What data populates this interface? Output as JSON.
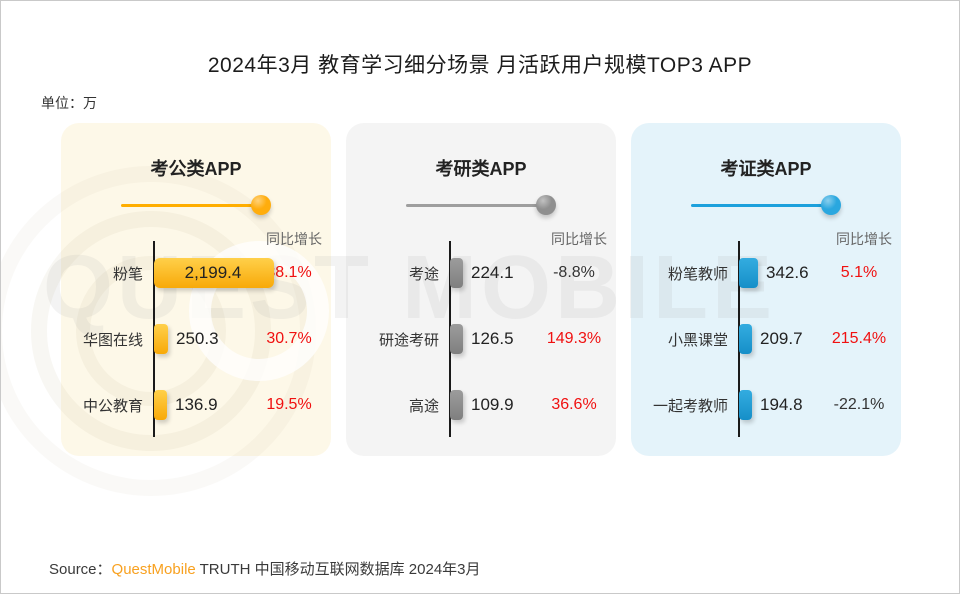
{
  "title": "2024年3月 教育学习细分场景 月活跃用户规模TOP3 APP",
  "unit_label": "单位：万",
  "yoy_label": "同比增长",
  "watermark_text": "QUEST MOBILE",
  "source": {
    "prefix": "Source：",
    "brand": "QuestMobile",
    "suffix": " TRUTH 中国移动互联网数据库 2024年3月"
  },
  "colors": {
    "positive_pct": "#f01010",
    "negative_pct": "#333333",
    "source_brand": "#f8a120",
    "axis": "#1a1a1a"
  },
  "chart_data": [
    {
      "type": "bar",
      "title": "考公类APP",
      "unit": "万",
      "categories": [
        "粉笔",
        "华图在线",
        "中公教育"
      ],
      "values": [
        2199.4,
        250.3,
        136.9
      ],
      "value_labels": [
        "2,199.4",
        "250.3",
        "136.9"
      ],
      "yoy": [
        "38.1%",
        "30.7%",
        "19.5%"
      ],
      "theme": {
        "line": "#ffae00",
        "dot": "#ffad0d",
        "bar_top": "#ffd04a",
        "bar_bottom": "#f8a908",
        "panel_bg": "#fdf8e8"
      }
    },
    {
      "type": "bar",
      "title": "考研类APP",
      "unit": "万",
      "categories": [
        "考途",
        "研途考研",
        "高途"
      ],
      "values": [
        224.1,
        126.5,
        109.9
      ],
      "value_labels": [
        "224.1",
        "126.5",
        "109.9"
      ],
      "yoy": [
        "-8.8%",
        "149.3%",
        "36.6%"
      ],
      "theme": {
        "line": "#9e9e9e",
        "dot": "#8f8f8f",
        "bar_top": "#9c9c9c",
        "bar_bottom": "#7f7f7f",
        "panel_bg": "#f4f4f4"
      }
    },
    {
      "type": "bar",
      "title": "考证类APP",
      "unit": "万",
      "categories": [
        "粉笔教师",
        "小黑课堂",
        "一起考教师"
      ],
      "values": [
        342.6,
        209.7,
        194.8
      ],
      "value_labels": [
        "342.6",
        "209.7",
        "194.8"
      ],
      "yoy": [
        "5.1%",
        "215.4%",
        "-22.1%"
      ],
      "theme": {
        "line": "#1ca0dc",
        "dot": "#2aa7df",
        "bar_top": "#33ace0",
        "bar_bottom": "#168fc8",
        "panel_bg": "#e4f3fa"
      }
    }
  ]
}
